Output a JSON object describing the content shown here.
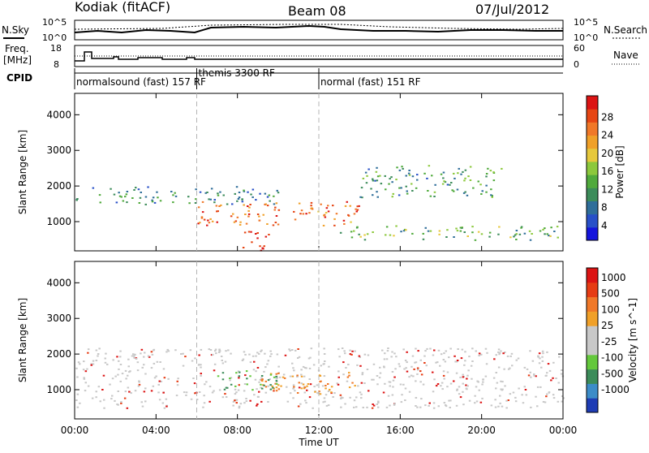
{
  "header": {
    "station": "Kodiak (fitACF)",
    "beam": "Beam 08",
    "date": "07/Jul/2012"
  },
  "top_panels": {
    "nsky": {
      "label": "N.Sky",
      "tick_top": "10^5",
      "tick_bottom": "10^0"
    },
    "nsearch": {
      "label": "N.Search",
      "tick_top": "10^5",
      "tick_bottom": "10^0"
    },
    "freq": {
      "label_line1": "Freq.",
      "label_line2": "[MHz]",
      "tick_top": "18",
      "tick_bottom": "8"
    },
    "nave": {
      "label": "Nave",
      "tick_top": "60",
      "tick_bottom": "0"
    },
    "cpid": {
      "label": "CPID",
      "modes": [
        {
          "label": "normalsound (fast) 157 RF",
          "start_hour": 0
        },
        {
          "label": "themis 3300 RF",
          "start_hour": 6
        },
        {
          "label": "normal (fast) 151 RF",
          "start_hour": 12
        }
      ]
    }
  },
  "chart_data": [
    {
      "type": "heatmap",
      "panel": "power",
      "ylabel": "Slant Range [km]",
      "ylim": [
        180,
        4600
      ],
      "xlim_hours": [
        0,
        24
      ],
      "yticks": [
        1000,
        2000,
        3000,
        4000
      ],
      "colorbar": {
        "label": "Power [dB]",
        "ticks": [
          "4",
          "8",
          "12",
          "16",
          "20",
          "24",
          "28"
        ],
        "colors": [
          "#1414dc",
          "#2850c8",
          "#2f6e9a",
          "#3c8c5a",
          "#50aa3c",
          "#8cc83c",
          "#e6c83c",
          "#f0a028",
          "#f07828",
          "#e64614",
          "#dc1414"
        ]
      },
      "features": [
        {
          "name": "main band",
          "from_hour": 0,
          "to_hour": 10,
          "range_km": [
            1500,
            2000
          ],
          "power_db": 10
        },
        {
          "name": "enhanced echoes",
          "from_hour": 6,
          "to_hour": 14,
          "range_km": [
            900,
            1600
          ],
          "power_db": 24
        },
        {
          "name": "near-range echoes",
          "from_hour": 8,
          "to_hour": 9.5,
          "range_km": [
            200,
            800
          ],
          "power_db": 28
        },
        {
          "name": "arc",
          "from_hour": 14,
          "to_hour": 21,
          "range_km": [
            1700,
            2600
          ],
          "power_db": 12
        },
        {
          "name": "low band",
          "from_hour": 13,
          "to_hour": 24,
          "range_km": [
            500,
            900
          ],
          "power_db": 14
        }
      ]
    },
    {
      "type": "heatmap",
      "panel": "velocity",
      "ylabel": "Slant Range [km]",
      "ylim": [
        180,
        4600
      ],
      "xlim_hours": [
        0,
        24
      ],
      "yticks": [
        1000,
        2000,
        3000,
        4000
      ],
      "xticks": [
        "00:00",
        "04:00",
        "08:00",
        "12:00",
        "16:00",
        "20:00",
        "00:00"
      ],
      "xlabel": "Time UT",
      "colorbar": {
        "label": "Velocity [m s^-1]",
        "ticks": [
          "1000",
          "500",
          "100",
          "25",
          "-25",
          "-100",
          "-500",
          "-1000"
        ],
        "colors": [
          "#1e3cb4",
          "#3c8cc8",
          "#3c8c5a",
          "#64c83c",
          "#c8c8c8",
          "#c8c8c8",
          "#f0a028",
          "#f07828",
          "#e63c14",
          "#dc1414"
        ]
      },
      "features": [
        {
          "name": "ground scatter",
          "from_hour": 0,
          "to_hour": 24,
          "range_km": [
            500,
            2200
          ],
          "velocity": 0
        },
        {
          "name": "negative flow",
          "from_hour": 9,
          "to_hour": 14,
          "range_km": [
            900,
            1500
          ],
          "velocity": -500
        },
        {
          "name": "positive flow",
          "from_hour": 7,
          "to_hour": 10,
          "range_km": [
            1000,
            1600
          ],
          "velocity": 300
        }
      ]
    }
  ]
}
